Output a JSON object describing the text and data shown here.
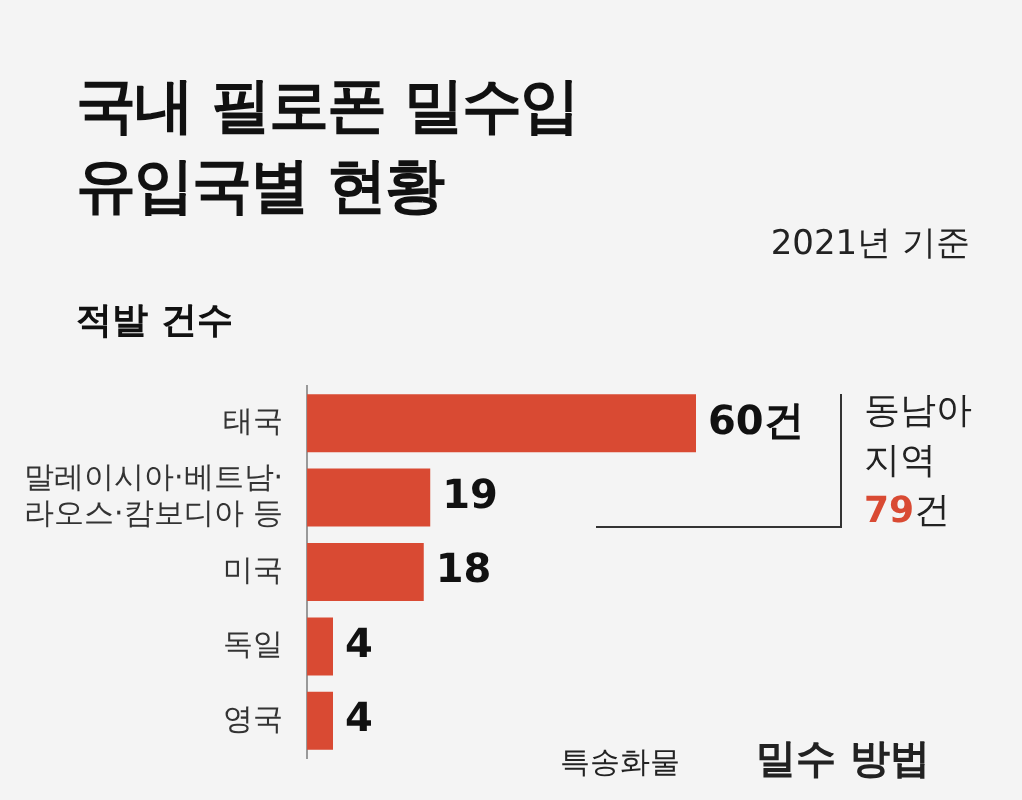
{
  "chart_data": {
    "type": "bar",
    "orientation": "horizontal",
    "title": "국내 필로폰 밀수입 유입국별 현황",
    "subtitle": "적발 건수",
    "categories": [
      "태국",
      "말레이시아·베트남·라오스·캄보디아 등",
      "미국",
      "독일",
      "영국"
    ],
    "values": [
      60,
      19,
      18,
      4,
      4
    ],
    "color": "#d94a33",
    "value_labels": [
      "60건",
      "19",
      "18",
      "4",
      "4"
    ],
    "annotations": [
      "2021년 기준",
      "동남아 지역 79건",
      "특송화물",
      "밀수 방법"
    ],
    "grid": false,
    "legend": false
  }
}
